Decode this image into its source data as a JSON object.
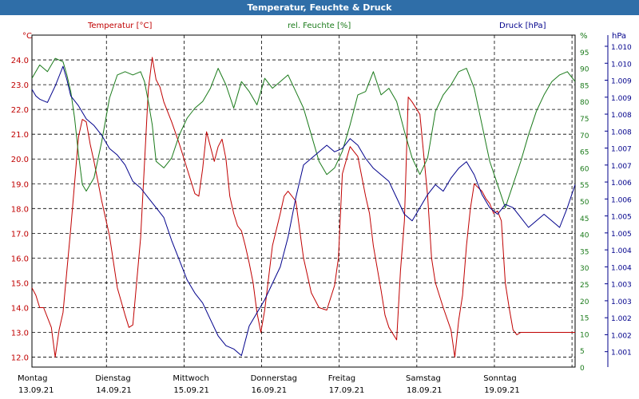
{
  "title": "Temperatur, Feuchte & Druck",
  "colors": {
    "title_bg": "#2f6ea8",
    "temperature": "#c00000",
    "humidity": "#1a7a1a",
    "pressure": "#00008b",
    "grid": "#000000"
  },
  "chart_data": {
    "type": "line",
    "title": "Temperatur, Feuchte & Druck",
    "axes": {
      "temperature": {
        "label": "Temperatur [°C]",
        "unit": "°C",
        "range": [
          11.6,
          25.0
        ],
        "ticks": [
          "24.0",
          "23.0",
          "22.0",
          "21.0",
          "20.0",
          "19.0",
          "18.0",
          "17.0",
          "16.0",
          "15.0",
          "14.0",
          "13.0",
          "12.0"
        ]
      },
      "humidity": {
        "label": "rel. Feuchte [%]",
        "unit": "%",
        "range": [
          0,
          100
        ],
        "ticks": [
          "95",
          "90",
          "85",
          "80",
          "75",
          "70",
          "65",
          "60",
          "55",
          "50",
          "45",
          "40",
          "35",
          "30",
          "25",
          "20",
          "15",
          "10",
          "5",
          "0"
        ],
        "top_unit_label": "%"
      },
      "pressure": {
        "label": "Druck [hPa]",
        "unit": "hPa",
        "range": [
          1000.75,
          1010.85
        ],
        "ticks": [
          "1.010",
          "1.010",
          "1.009",
          "1.009",
          "1.008",
          "1.008",
          "1.007",
          "1.007",
          "1.006",
          "1.006",
          "1.005",
          "1.005",
          "1.004",
          "1.004",
          "1.003",
          "1.003",
          "1.002",
          "1.002",
          "1.001"
        ]
      }
    },
    "x_axis": {
      "day_range": [
        0,
        7
      ],
      "days": [
        {
          "name": "Montag",
          "date": "13.09.21"
        },
        {
          "name": "Dienstag",
          "date": "14.09.21"
        },
        {
          "name": "Mittwoch",
          "date": "15.09.21"
        },
        {
          "name": "Donnerstag",
          "date": "16.09.21"
        },
        {
          "name": "Freitag",
          "date": "17.09.21"
        },
        {
          "name": "Samstag",
          "date": "18.09.21"
        },
        {
          "name": "Sonntag",
          "date": "19.09.21"
        }
      ]
    },
    "series": [
      {
        "name": "Temperatur [°C]",
        "axis": "temperature",
        "color": "#c00000",
        "x": [
          0,
          0.05,
          0.1,
          0.15,
          0.25,
          0.3,
          0.35,
          0.4,
          0.5,
          0.6,
          0.65,
          0.7,
          0.75,
          0.8,
          0.9,
          1.0,
          1.1,
          1.2,
          1.25,
          1.3,
          1.4,
          1.5,
          1.55,
          1.6,
          1.65,
          1.7,
          1.8,
          1.9,
          2.0,
          2.1,
          2.15,
          2.2,
          2.25,
          2.35,
          2.4,
          2.45,
          2.5,
          2.55,
          2.6,
          2.65,
          2.7,
          2.75,
          2.8,
          2.85,
          2.9,
          2.95,
          3.0,
          3.1,
          3.2,
          3.25,
          3.3,
          3.4,
          3.5,
          3.55,
          3.6,
          3.7,
          3.8,
          3.9,
          3.95,
          4.0,
          4.1,
          4.15,
          4.2,
          4.3,
          4.35,
          4.4,
          4.5,
          4.55,
          4.6,
          4.7,
          4.75,
          4.8,
          4.85,
          4.9,
          5.0,
          5.1,
          5.15,
          5.2,
          5.3,
          5.4,
          5.45,
          5.5,
          5.55,
          5.6,
          5.65,
          5.7,
          5.8,
          5.85,
          5.9,
          5.95,
          6.0,
          6.05,
          6.1,
          6.15,
          6.2,
          6.25,
          6.3,
          6.35,
          6.4,
          6.45,
          6.5,
          6.55,
          6.6,
          6.65,
          6.7,
          6.75,
          6.8,
          6.85,
          6.9,
          6.95,
          7.0
        ],
        "values": [
          14.8,
          14.5,
          14.0,
          14.0,
          13.2,
          12.0,
          13.1,
          13.8,
          17.2,
          20.9,
          21.6,
          21.5,
          20.6,
          19.9,
          18.3,
          16.9,
          14.8,
          13.7,
          13.2,
          13.3,
          16.8,
          22.8,
          24.1,
          23.2,
          22.9,
          22.3,
          21.5,
          20.6,
          19.6,
          18.6,
          18.5,
          19.6,
          21.1,
          19.9,
          20.5,
          20.8,
          20.0,
          18.5,
          17.8,
          17.3,
          17.1,
          16.5,
          15.8,
          15.0,
          13.8,
          13.0,
          13.9,
          16.5,
          17.8,
          18.5,
          18.7,
          18.3,
          16.0,
          15.3,
          14.6,
          14.0,
          13.9,
          14.9,
          16.0,
          19.4,
          20.5,
          20.3,
          20.1,
          18.5,
          17.8,
          16.5,
          14.7,
          13.7,
          13.2,
          12.7,
          15.5,
          17.5,
          22.5,
          22.3,
          21.8,
          18.5,
          16.0,
          15.0,
          14.0,
          13.1,
          12.0,
          13.5,
          14.5,
          16.5,
          18.0,
          19.0,
          18.7,
          18.4,
          18.2,
          17.8,
          17.9,
          17.5,
          15.0,
          14.0,
          13.1,
          12.9,
          13.0,
          13.0,
          13.0,
          13.0,
          13.0,
          13.0,
          13.0,
          13.0,
          13.0,
          13.0,
          13.0,
          13.0,
          13.0,
          13.0,
          13.0
        ]
      },
      {
        "name": "rel. Feuchte [%]",
        "axis": "humidity",
        "color": "#1a7a1a",
        "x": [
          0,
          0.1,
          0.2,
          0.3,
          0.4,
          0.45,
          0.5,
          0.55,
          0.6,
          0.65,
          0.7,
          0.8,
          0.9,
          1.0,
          1.1,
          1.2,
          1.3,
          1.4,
          1.45,
          1.5,
          1.55,
          1.6,
          1.7,
          1.8,
          1.9,
          2.0,
          2.1,
          2.2,
          2.3,
          2.4,
          2.5,
          2.6,
          2.7,
          2.8,
          2.9,
          3.0,
          3.1,
          3.2,
          3.3,
          3.4,
          3.5,
          3.6,
          3.7,
          3.8,
          3.9,
          4.0,
          4.1,
          4.2,
          4.3,
          4.4,
          4.5,
          4.6,
          4.7,
          4.8,
          4.9,
          5.0,
          5.1,
          5.2,
          5.3,
          5.4,
          5.5,
          5.6,
          5.7,
          5.8,
          5.9,
          6.0,
          6.1,
          6.2,
          6.3,
          6.4,
          6.5,
          6.6,
          6.7,
          6.8,
          6.9,
          7.0
        ],
        "values": [
          87,
          91,
          89,
          93,
          92,
          88,
          83,
          75,
          64,
          55,
          53,
          57,
          68,
          81,
          88,
          89,
          88,
          89,
          86,
          80,
          73,
          62,
          60,
          63,
          70,
          75,
          78,
          80,
          84,
          90,
          85,
          78,
          86,
          83,
          79,
          87,
          84,
          86,
          88,
          83,
          78,
          70,
          62,
          58,
          60,
          65,
          73,
          82,
          83,
          89,
          82,
          84,
          80,
          71,
          63,
          58,
          63,
          77,
          82,
          85,
          89,
          90,
          84,
          73,
          62,
          55,
          48,
          55,
          62,
          70,
          77,
          82,
          86,
          88,
          89,
          86
        ]
      },
      {
        "name": "Druck [hPa]",
        "axis": "pressure",
        "color": "#00008b",
        "x": [
          0,
          0.05,
          0.1,
          0.2,
          0.3,
          0.35,
          0.4,
          0.45,
          0.5,
          0.6,
          0.7,
          0.8,
          0.9,
          1.0,
          1.1,
          1.2,
          1.3,
          1.4,
          1.5,
          1.6,
          1.7,
          1.8,
          1.9,
          2.0,
          2.1,
          2.2,
          2.3,
          2.4,
          2.5,
          2.6,
          2.7,
          2.8,
          2.9,
          3.0,
          3.1,
          3.2,
          3.3,
          3.4,
          3.5,
          3.6,
          3.7,
          3.8,
          3.9,
          4.0,
          4.1,
          4.2,
          4.3,
          4.4,
          4.5,
          4.6,
          4.7,
          4.8,
          4.9,
          5.0,
          5.1,
          5.2,
          5.3,
          5.4,
          5.5,
          5.6,
          5.7,
          5.8,
          5.9,
          6.0,
          6.1,
          6.2,
          6.3,
          6.4,
          6.5,
          6.6,
          6.7,
          6.8,
          6.9,
          7.0
        ],
        "values": [
          1009.2,
          1009.0,
          1008.9,
          1008.8,
          1009.3,
          1009.6,
          1009.9,
          1009.5,
          1009.0,
          1008.7,
          1008.3,
          1008.1,
          1007.8,
          1007.4,
          1007.2,
          1006.9,
          1006.4,
          1006.2,
          1005.9,
          1005.6,
          1005.3,
          1004.6,
          1004.0,
          1003.4,
          1003.0,
          1002.7,
          1002.2,
          1001.7,
          1001.4,
          1001.3,
          1001.1,
          1002.0,
          1002.4,
          1002.8,
          1003.3,
          1003.8,
          1004.7,
          1005.9,
          1006.9,
          1007.1,
          1007.3,
          1007.5,
          1007.3,
          1007.4,
          1007.7,
          1007.5,
          1007.1,
          1006.8,
          1006.6,
          1006.4,
          1005.9,
          1005.4,
          1005.2,
          1005.6,
          1006.0,
          1006.3,
          1006.1,
          1006.5,
          1006.8,
          1007.0,
          1006.6,
          1006.0,
          1005.6,
          1005.4,
          1005.7,
          1005.6,
          1005.3,
          1005.0,
          1005.2,
          1005.4,
          1005.2,
          1005.0,
          1005.6,
          1006.3
        ]
      }
    ]
  }
}
